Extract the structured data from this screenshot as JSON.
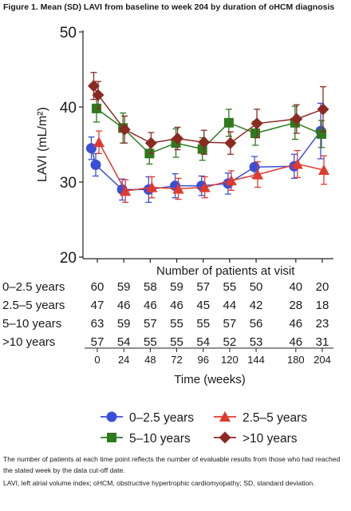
{
  "figure_title": "Figure 1. Mean (SD) LAVI from baseline to week 204 by duration of oHCM diagnosis",
  "footnotes": [
    "The number of patients at each time point reflects the number of evaluable results from those who had reached the stated week by the data cut-off date.",
    "LAVI, left atrial volume index; oHCM, obstructive hypertrophic cardiomyopathy; SD, standard deviation."
  ],
  "chart_data": {
    "type": "line",
    "title": "Figure 1. Mean (SD) LAVI from baseline to week 204 by duration of oHCM diagnosis",
    "xlabel": "Time (weeks)",
    "ylabel": "LAVI (mL/m²)",
    "ylim": [
      20,
      50
    ],
    "yticks": [
      20,
      30,
      40,
      50
    ],
    "xticks": [
      0,
      24,
      48,
      72,
      96,
      120,
      144,
      180,
      204
    ],
    "xtick_labels": [
      "0",
      "24",
      "48",
      "72",
      "96",
      "120",
      "144",
      "180",
      "204"
    ],
    "grid": false,
    "legend_position": "bottom",
    "series": [
      {
        "name": "0–2.5 years",
        "color": "#3a4fd8",
        "marker": "circle",
        "x": [
          -4,
          0,
          24,
          48,
          72,
          96,
          120,
          144,
          180,
          204
        ],
        "y": [
          34.5,
          32.3,
          29.0,
          29.0,
          29.5,
          29.5,
          29.8,
          32.0,
          32.1,
          36.8
        ],
        "sd": [
          1.5,
          1.5,
          1.4,
          1.7,
          1.6,
          1.3,
          1.4,
          1.4,
          1.6,
          3.7
        ]
      },
      {
        "name": "2.5–5 years",
        "color": "#e03a2e",
        "marker": "triangle",
        "x": [
          0,
          24,
          48,
          72,
          96,
          120,
          144,
          180,
          204
        ],
        "y": [
          35.3,
          28.8,
          29.3,
          29.1,
          29.3,
          30.2,
          31.0,
          32.4,
          31.6
        ],
        "sd": [
          1.5,
          1.5,
          1.4,
          1.4,
          1.4,
          1.3,
          1.7,
          1.8,
          1.9
        ]
      },
      {
        "name": "5–10 years",
        "color": "#2e7a1e",
        "marker": "square",
        "x": [
          0,
          24,
          48,
          72,
          96,
          120,
          144,
          180,
          204
        ],
        "y": [
          39.8,
          37.2,
          33.8,
          35.2,
          34.4,
          37.9,
          36.5,
          37.9,
          36.4
        ],
        "sd": [
          1.8,
          2.0,
          1.4,
          1.9,
          1.5,
          1.8,
          1.6,
          2.2,
          1.8
        ]
      },
      {
        "name": ">10 years",
        "color": "#8b2a22",
        "marker": "diamond",
        "x": [
          -4,
          0,
          24,
          48,
          72,
          96,
          120,
          144,
          180,
          204
        ],
        "y": [
          42.8,
          41.6,
          37.0,
          35.2,
          35.8,
          35.3,
          35.2,
          37.8,
          38.4,
          39.7
        ],
        "sd": [
          1.8,
          1.8,
          1.8,
          1.4,
          1.5,
          1.6,
          1.5,
          1.9,
          1.9,
          3.0
        ]
      }
    ],
    "patient_table": {
      "title": "Number of patients at visit",
      "rows": [
        {
          "label": "0–2.5 years",
          "counts": [
            "60",
            "59",
            "58",
            "59",
            "57",
            "55",
            "50",
            "40",
            "20"
          ]
        },
        {
          "label": "2.5–5 years",
          "counts": [
            "47",
            "46",
            "46",
            "46",
            "45",
            "44",
            "42",
            "28",
            "18"
          ]
        },
        {
          "label": "5–10 years",
          "counts": [
            "63",
            "59",
            "57",
            "55",
            "55",
            "57",
            "56",
            "46",
            "23"
          ]
        },
        {
          "label": ">10 years",
          "counts": [
            "57",
            "54",
            "55",
            "55",
            "54",
            "52",
            "53",
            "46",
            "31"
          ]
        }
      ]
    }
  }
}
